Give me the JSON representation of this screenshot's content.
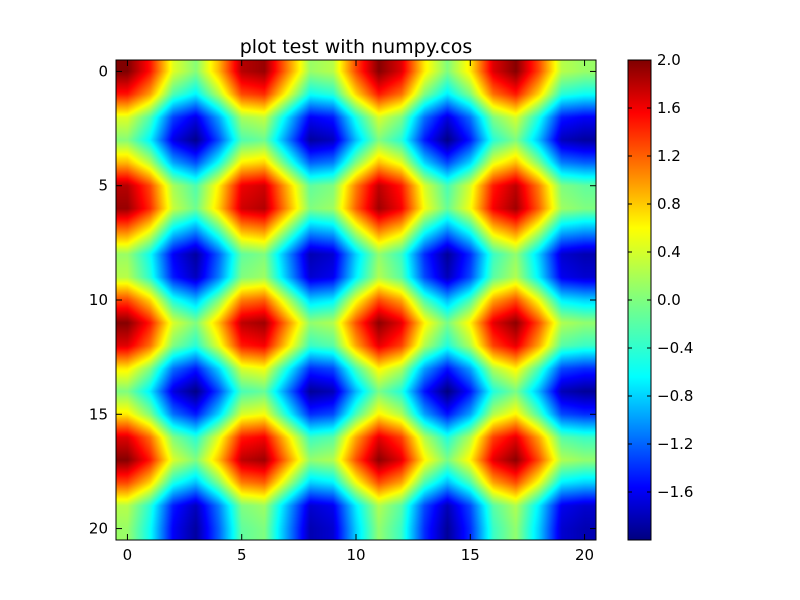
{
  "chart_data": {
    "type": "heatmap",
    "title": "plot test with numpy.cos",
    "xlabel": "",
    "ylabel": "",
    "size": 21,
    "grid": false,
    "x_ticks": [
      "0",
      "5",
      "10",
      "15",
      "20"
    ],
    "y_ticks": [
      "0",
      "5",
      "10",
      "15",
      "20"
    ],
    "xlim": [
      -0.5,
      20.5
    ],
    "ylim": [
      20.5,
      -0.5
    ],
    "value_range": [
      -2.0,
      2.0
    ],
    "colormap": "jet",
    "colorbar": {
      "range": [
        -2.0,
        2.0
      ],
      "ticks": [
        "2.0",
        "1.6",
        "1.2",
        "0.8",
        "0.4",
        "0.0",
        "−0.4",
        "−0.8",
        "−1.2",
        "−1.6"
      ],
      "tick_values": [
        2.0,
        1.6,
        1.2,
        0.8,
        0.4,
        0.0,
        -0.4,
        -0.8,
        -1.2,
        -1.6
      ],
      "placement": "right"
    }
  }
}
